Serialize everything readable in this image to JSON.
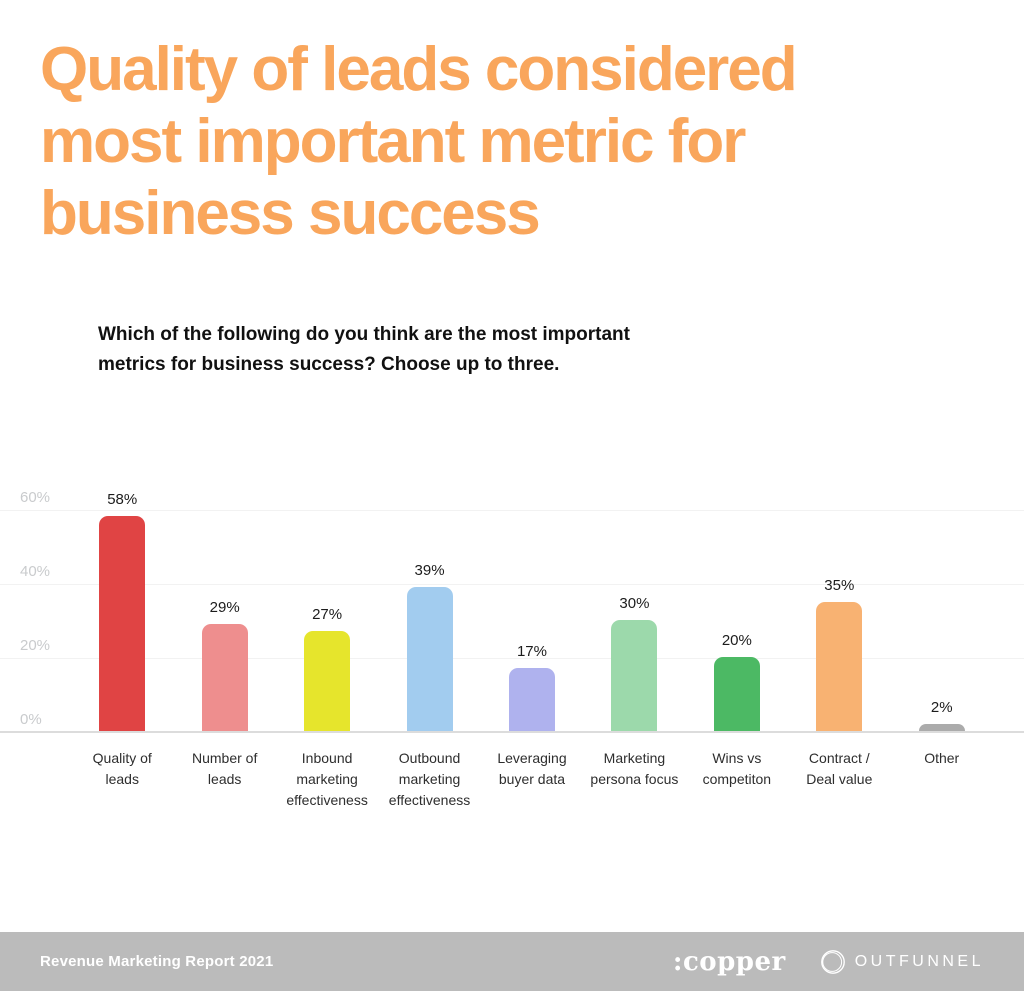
{
  "title_lines": [
    "Quality of leads considered",
    "most important metric for",
    "business success"
  ],
  "question_lines": [
    "Which of the following do you think are the most important",
    "metrics for business success? Choose up to three."
  ],
  "chart_data": {
    "type": "bar",
    "categories": [
      "Quality of leads",
      "Number of leads",
      "Inbound marketing effectiveness",
      "Outbound marketing effectiveness",
      "Leveraging buyer data",
      "Marketing persona focus",
      "Wins vs competiton",
      "Contract / Deal value",
      "Other"
    ],
    "values": [
      58,
      29,
      27,
      39,
      17,
      30,
      20,
      35,
      2
    ],
    "value_labels": [
      "58%",
      "29%",
      "27%",
      "39%",
      "17%",
      "30%",
      "20%",
      "35%",
      "2%"
    ],
    "bar_colors": [
      "#E04444",
      "#EE8E8E",
      "#E6E52C",
      "#A2CCEF",
      "#AFB2EE",
      "#9CD9AB",
      "#4CB964",
      "#F8B272",
      "#ABABAB"
    ],
    "y_ticks": [
      {
        "label": "0%",
        "value": 0
      },
      {
        "label": "20%",
        "value": 20
      },
      {
        "label": "40%",
        "value": 40
      },
      {
        "label": "60%",
        "value": 60
      }
    ],
    "ylim": [
      0,
      60
    ],
    "grid": true,
    "legend_position": "none",
    "title": "Quality of leads considered most important metric for business success",
    "xlabel": "",
    "ylabel": ""
  },
  "footer": {
    "report_label": "Revenue Marketing Report 2021",
    "copper_logo_text": ":copper",
    "outfunnel_logo_text": "OUTFUNNEL"
  },
  "colors": {
    "title": "#F9A65C",
    "footer_bg": "#BBBBBB",
    "tick_label": "#C9CBCD",
    "gridline": "#F2F2F2",
    "baseline": "#DCDCDC",
    "value_label": "#1C1C1C",
    "category_label": "#2E2E2E"
  }
}
